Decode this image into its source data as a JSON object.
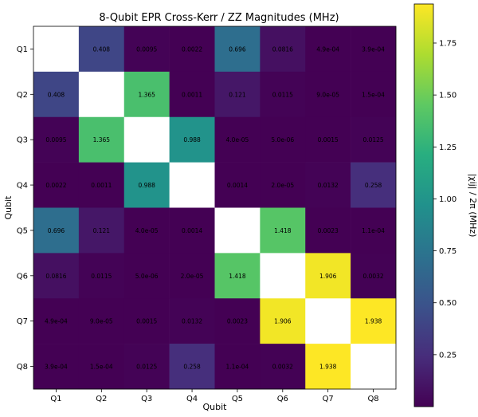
{
  "chart_data": {
    "type": "heatmap",
    "title": "8-Qubit EPR Cross-Kerr / ZZ Magnitudes (MHz)",
    "xlabel": "Qubit",
    "ylabel": "Qubit",
    "x_categories": [
      "Q1",
      "Q2",
      "Q3",
      "Q4",
      "Q5",
      "Q6",
      "Q7",
      "Q8"
    ],
    "y_categories": [
      "Q1",
      "Q2",
      "Q3",
      "Q4",
      "Q5",
      "Q6",
      "Q7",
      "Q8"
    ],
    "colormap": "viridis",
    "diagonal": "blank (white)",
    "colorbar": {
      "label": "|χij| / 2π (MHz)",
      "range": [
        0,
        1.938
      ],
      "ticks": [
        0.25,
        0.5,
        0.75,
        1.0,
        1.25,
        1.5,
        1.75
      ],
      "tick_labels": [
        "0.25",
        "0.50",
        "0.75",
        "1.00",
        "1.25",
        "1.50",
        "1.75"
      ]
    },
    "values": [
      [
        null,
        0.408,
        0.0095,
        0.0022,
        0.696,
        0.0816,
        0.00049,
        0.00039
      ],
      [
        0.408,
        null,
        1.365,
        0.0011,
        0.121,
        0.0115,
        9e-05,
        0.00015
      ],
      [
        0.0095,
        1.365,
        null,
        0.988,
        4e-05,
        5e-06,
        0.0015,
        0.0125
      ],
      [
        0.0022,
        0.0011,
        0.988,
        null,
        0.0014,
        2e-05,
        0.0132,
        0.258
      ],
      [
        0.696,
        0.121,
        4e-05,
        0.0014,
        null,
        1.418,
        0.0023,
        0.00011
      ],
      [
        0.0816,
        0.0115,
        5e-06,
        2e-05,
        1.418,
        null,
        1.906,
        0.0032
      ],
      [
        0.00049,
        9e-05,
        0.0015,
        0.0132,
        0.0023,
        1.906,
        null,
        1.938
      ],
      [
        0.00039,
        0.00015,
        0.0125,
        0.258,
        0.00011,
        0.0032,
        1.938,
        null
      ]
    ],
    "cell_labels": [
      [
        "",
        "0.408",
        "0.0095",
        "0.0022",
        "0.696",
        "0.0816",
        "4.9e-04",
        "3.9e-04"
      ],
      [
        "0.408",
        "",
        "1.365",
        "0.0011",
        "0.121",
        "0.0115",
        "9.0e-05",
        "1.5e-04"
      ],
      [
        "0.0095",
        "1.365",
        "",
        "0.988",
        "4.0e-05",
        "5.0e-06",
        "0.0015",
        "0.0125"
      ],
      [
        "0.0022",
        "0.0011",
        "0.988",
        "",
        "0.0014",
        "2.0e-05",
        "0.0132",
        "0.258"
      ],
      [
        "0.696",
        "0.121",
        "4.0e-05",
        "0.0014",
        "",
        "1.418",
        "0.0023",
        "1.1e-04"
      ],
      [
        "0.0816",
        "0.0115",
        "5.0e-06",
        "2.0e-05",
        "1.418",
        "",
        "1.906",
        "0.0032"
      ],
      [
        "4.9e-04",
        "9.0e-05",
        "0.0015",
        "0.0132",
        "0.0023",
        "1.906",
        "",
        "1.938"
      ],
      [
        "3.9e-04",
        "1.5e-04",
        "0.0125",
        "0.258",
        "1.1e-04",
        "0.0032",
        "1.938",
        ""
      ]
    ]
  }
}
